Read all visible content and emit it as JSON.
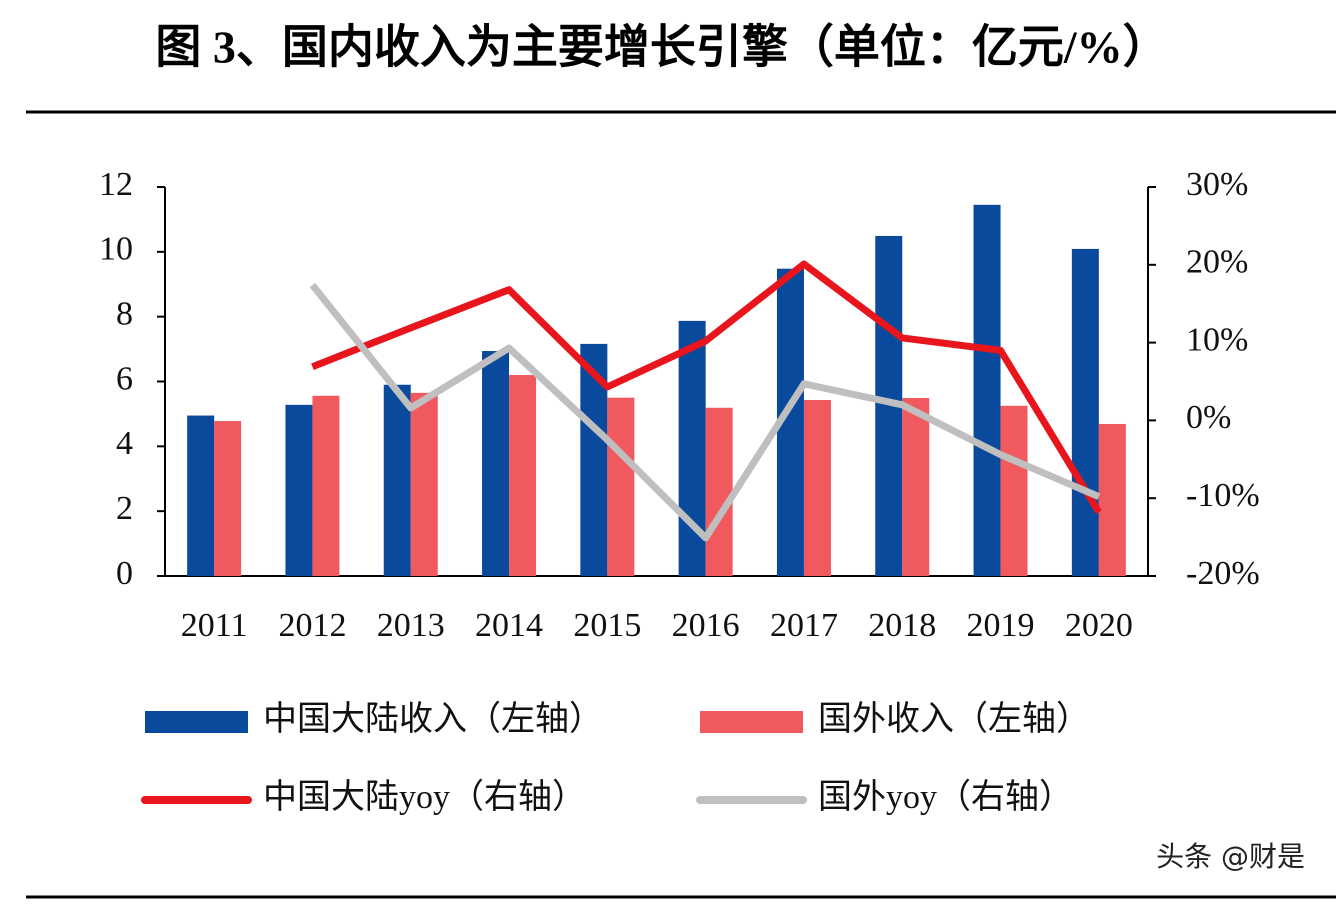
{
  "chart_data": {
    "type": "bar",
    "title": "图 3、国内收入为主要增长引擎（单位：亿元/%）",
    "categories": [
      "2011",
      "2012",
      "2013",
      "2014",
      "2015",
      "2016",
      "2017",
      "2018",
      "2019",
      "2020"
    ],
    "series": [
      {
        "name": "中国大陆收入（左轴）",
        "type": "bar",
        "color": "#0a4a9c",
        "values": [
          4.95,
          5.28,
          5.9,
          6.94,
          7.16,
          7.87,
          9.48,
          10.49,
          11.45,
          10.09
        ]
      },
      {
        "name": "国外收入（左轴）",
        "type": "bar",
        "color": "#f05a5f",
        "values": [
          4.78,
          5.56,
          5.65,
          6.2,
          5.5,
          5.19,
          5.43,
          5.49,
          5.25,
          4.69
        ]
      },
      {
        "name": "中国大陆yoy（右轴）",
        "type": "line",
        "axis": "y2",
        "color": "#e8161c",
        "values": [
          null,
          6.9,
          11.9,
          16.8,
          4.3,
          10.2,
          20.1,
          10.6,
          9.0,
          -11.8
        ]
      },
      {
        "name": "国外yoy（右轴）",
        "type": "line",
        "axis": "y2",
        "color": "#bfbfbf",
        "values": [
          null,
          17.4,
          1.6,
          9.3,
          -2.5,
          -15.1,
          4.7,
          2.0,
          -4.4,
          -9.8
        ]
      }
    ],
    "ylim": [
      0,
      12
    ],
    "yticks": [
      0,
      2,
      4,
      6,
      8,
      10,
      12
    ],
    "y2lim": [
      -20,
      30
    ],
    "y2ticks": [
      {
        "value": -20,
        "label": "-20%"
      },
      {
        "value": -10,
        "label": "-10%"
      },
      {
        "value": 0,
        "label": "0%"
      },
      {
        "value": 10,
        "label": "10%"
      },
      {
        "value": 20,
        "label": "20%"
      },
      {
        "value": 30,
        "label": "30%"
      }
    ],
    "watermark": "头条 @财是"
  }
}
